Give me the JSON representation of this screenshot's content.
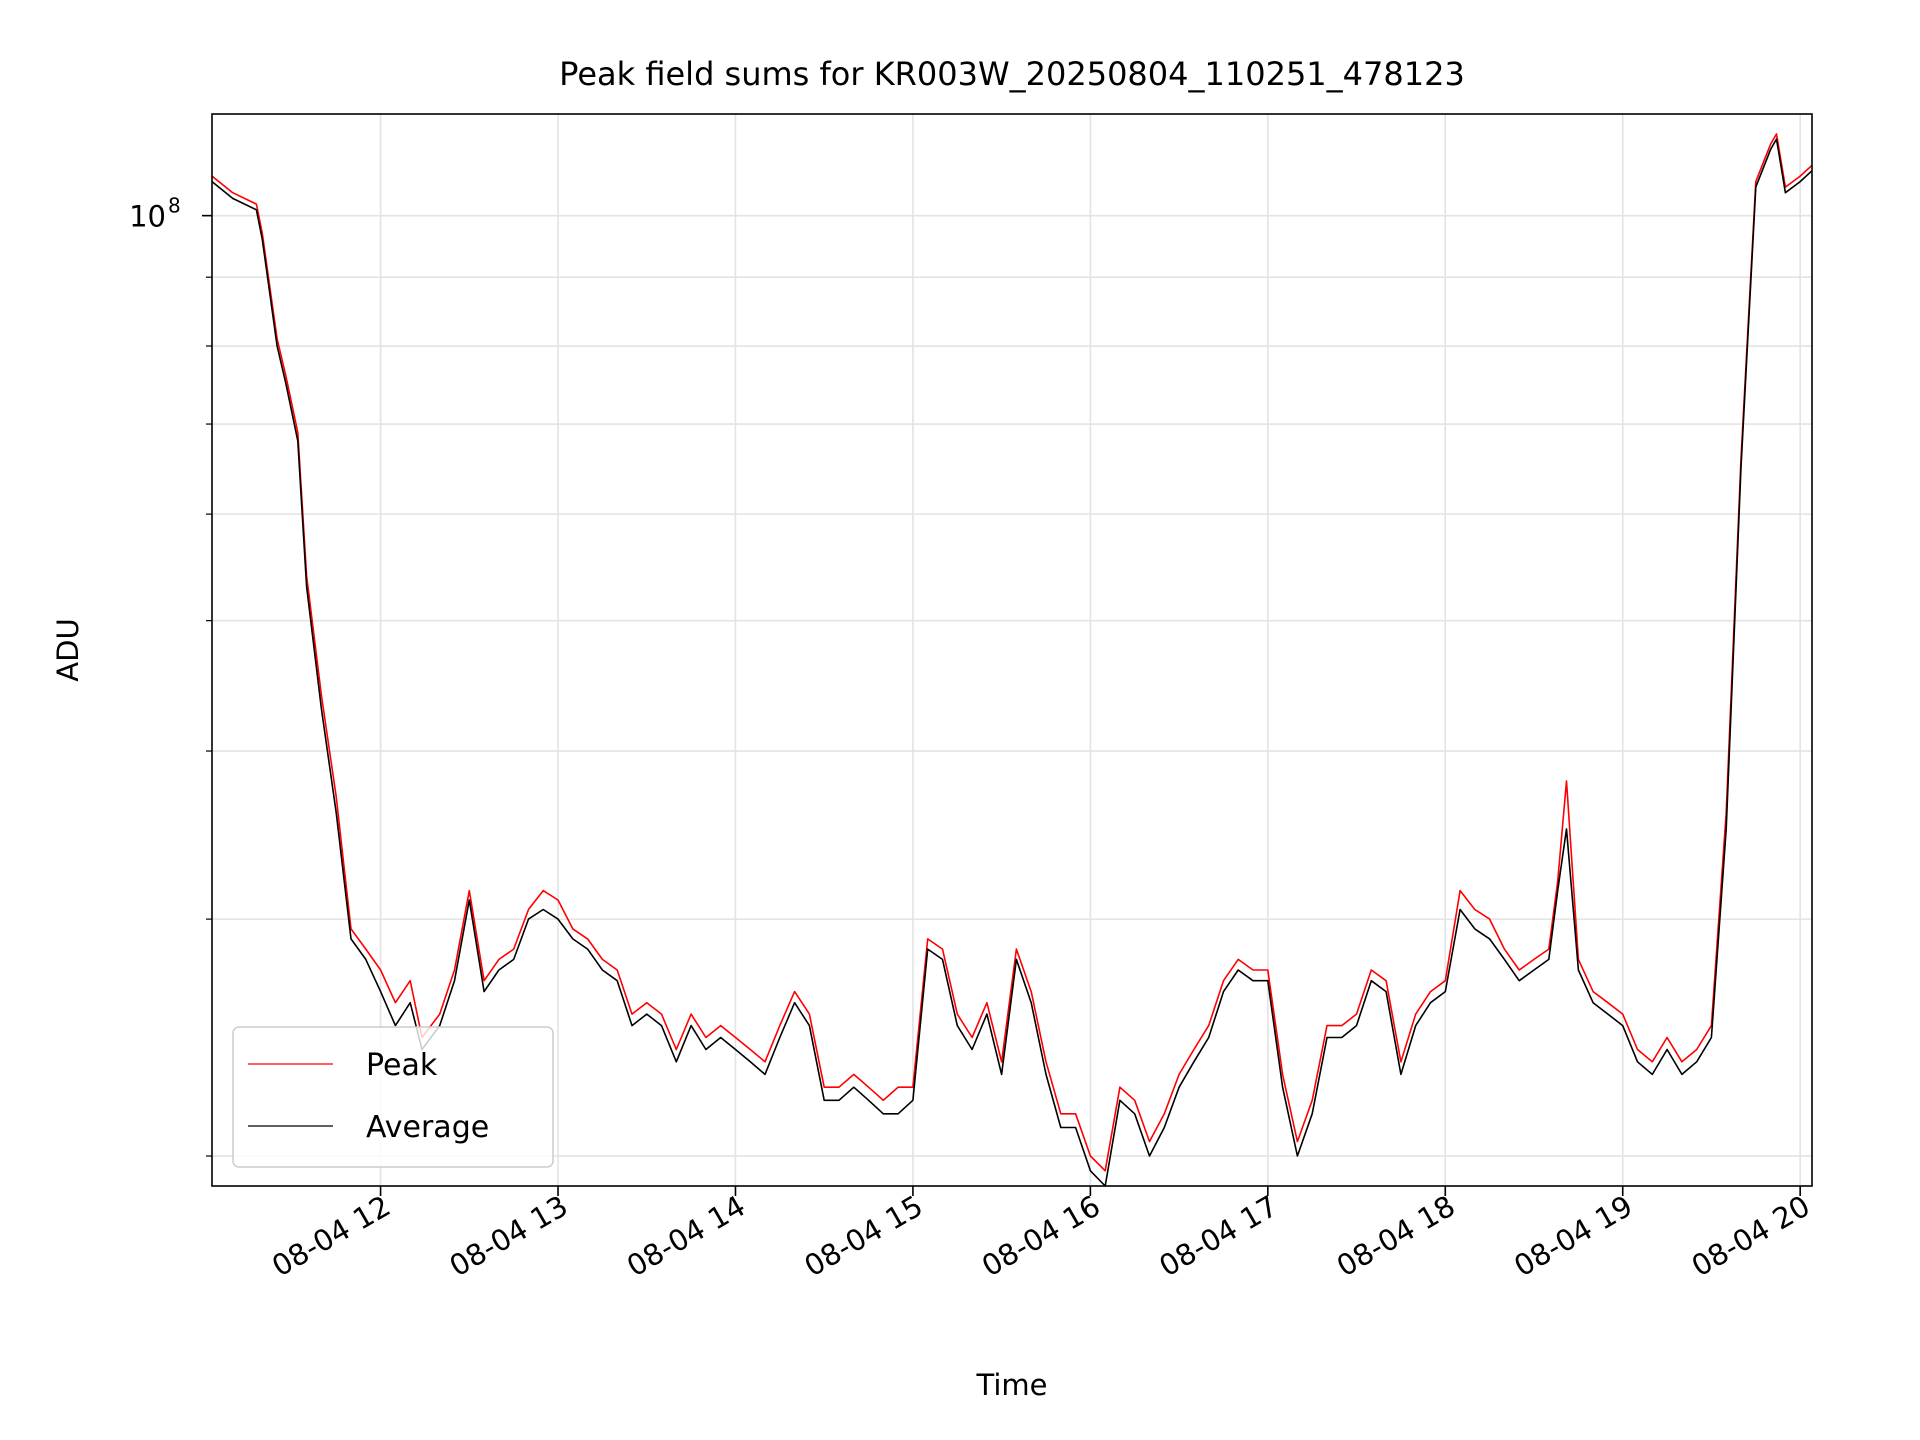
{
  "chart_data": {
    "type": "line",
    "title": "Peak field sums for KR003W_20250804_110251_478123",
    "xlabel": "Time",
    "ylabel": "ADU",
    "y_scale": "log",
    "ylim": [
      19000000,
      119000000
    ],
    "xlim": [
      "2025-08-04 11:03",
      "2025-08-04 20:04"
    ],
    "x_ticks": [
      {
        "value": "2025-08-04 12:00",
        "label": "08-04 12"
      },
      {
        "value": "2025-08-04 13:00",
        "label": "08-04 13"
      },
      {
        "value": "2025-08-04 14:00",
        "label": "08-04 14"
      },
      {
        "value": "2025-08-04 15:00",
        "label": "08-04 15"
      },
      {
        "value": "2025-08-04 16:00",
        "label": "08-04 16"
      },
      {
        "value": "2025-08-04 17:00",
        "label": "08-04 17"
      },
      {
        "value": "2025-08-04 18:00",
        "label": "08-04 18"
      },
      {
        "value": "2025-08-04 19:00",
        "label": "08-04 19"
      },
      {
        "value": "2025-08-04 20:00",
        "label": "08-04 20"
      }
    ],
    "y_major_ticks": [
      {
        "value": 100000000,
        "label_base": "10",
        "label_exp": "8"
      }
    ],
    "y_minor_gridlines": [
      20000000,
      30000000,
      40000000,
      50000000,
      60000000,
      70000000,
      80000000,
      90000000
    ],
    "grid": true,
    "legend_position": "lower-left",
    "colors": {
      "Peak": "#ff0000",
      "Average": "#000000"
    },
    "series": [
      {
        "name": "Average",
        "x": [
          "2025-08-04 11:03",
          "2025-08-04 11:10",
          "2025-08-04 11:18",
          "2025-08-04 11:20",
          "2025-08-04 11:25",
          "2025-08-04 11:28",
          "2025-08-04 11:32",
          "2025-08-04 11:35",
          "2025-08-04 11:40",
          "2025-08-04 11:45",
          "2025-08-04 11:50",
          "2025-08-04 11:55",
          "2025-08-04 12:00",
          "2025-08-04 12:05",
          "2025-08-04 12:10",
          "2025-08-04 12:14",
          "2025-08-04 12:20",
          "2025-08-04 12:25",
          "2025-08-04 12:30",
          "2025-08-04 12:35",
          "2025-08-04 12:40",
          "2025-08-04 12:45",
          "2025-08-04 12:50",
          "2025-08-04 12:55",
          "2025-08-04 13:00",
          "2025-08-04 13:05",
          "2025-08-04 13:10",
          "2025-08-04 13:15",
          "2025-08-04 13:20",
          "2025-08-04 13:25",
          "2025-08-04 13:30",
          "2025-08-04 13:35",
          "2025-08-04 13:40",
          "2025-08-04 13:45",
          "2025-08-04 13:50",
          "2025-08-04 13:55",
          "2025-08-04 14:00",
          "2025-08-04 14:05",
          "2025-08-04 14:10",
          "2025-08-04 14:15",
          "2025-08-04 14:20",
          "2025-08-04 14:25",
          "2025-08-04 14:30",
          "2025-08-04 14:35",
          "2025-08-04 14:40",
          "2025-08-04 14:45",
          "2025-08-04 14:50",
          "2025-08-04 14:55",
          "2025-08-04 15:00",
          "2025-08-04 15:05",
          "2025-08-04 15:10",
          "2025-08-04 15:15",
          "2025-08-04 15:20",
          "2025-08-04 15:25",
          "2025-08-04 15:30",
          "2025-08-04 15:35",
          "2025-08-04 15:40",
          "2025-08-04 15:45",
          "2025-08-04 15:50",
          "2025-08-04 15:55",
          "2025-08-04 16:00",
          "2025-08-04 16:05",
          "2025-08-04 16:10",
          "2025-08-04 16:15",
          "2025-08-04 16:20",
          "2025-08-04 16:25",
          "2025-08-04 16:30",
          "2025-08-04 16:35",
          "2025-08-04 16:40",
          "2025-08-04 16:45",
          "2025-08-04 16:50",
          "2025-08-04 16:55",
          "2025-08-04 17:00",
          "2025-08-04 17:05",
          "2025-08-04 17:10",
          "2025-08-04 17:15",
          "2025-08-04 17:20",
          "2025-08-04 17:25",
          "2025-08-04 17:30",
          "2025-08-04 17:35",
          "2025-08-04 17:40",
          "2025-08-04 17:45",
          "2025-08-04 17:50",
          "2025-08-04 17:55",
          "2025-08-04 18:00",
          "2025-08-04 18:05",
          "2025-08-04 18:10",
          "2025-08-04 18:15",
          "2025-08-04 18:20",
          "2025-08-04 18:25",
          "2025-08-04 18:30",
          "2025-08-04 18:35",
          "2025-08-04 18:38",
          "2025-08-04 18:41",
          "2025-08-04 18:45",
          "2025-08-04 18:50",
          "2025-08-04 18:55",
          "2025-08-04 19:00",
          "2025-08-04 19:05",
          "2025-08-04 19:10",
          "2025-08-04 19:15",
          "2025-08-04 19:20",
          "2025-08-04 19:25",
          "2025-08-04 19:30",
          "2025-08-04 19:35",
          "2025-08-04 19:40",
          "2025-08-04 19:45",
          "2025-08-04 19:50",
          "2025-08-04 19:52",
          "2025-08-04 19:55",
          "2025-08-04 20:00",
          "2025-08-04 20:04"
        ],
        "y": [
          106000000,
          103000000,
          101000000,
          96000000,
          80000000,
          75000000,
          68000000,
          53000000,
          43000000,
          36000000,
          29000000,
          28000000,
          26500000,
          25000000,
          26000000,
          24000000,
          25000000,
          27000000,
          31000000,
          26500000,
          27500000,
          28000000,
          30000000,
          30500000,
          30000000,
          29000000,
          28500000,
          27500000,
          27000000,
          25000000,
          25500000,
          25000000,
          23500000,
          25000000,
          24000000,
          24500000,
          24000000,
          23500000,
          23000000,
          24500000,
          26000000,
          25000000,
          22000000,
          22000000,
          22500000,
          22000000,
          21500000,
          21500000,
          22000000,
          28500000,
          28000000,
          25000000,
          24000000,
          25500000,
          23000000,
          28000000,
          26000000,
          23000000,
          21000000,
          21000000,
          19500000,
          19000000,
          22000000,
          21500000,
          20000000,
          21000000,
          22500000,
          23500000,
          24500000,
          26500000,
          27500000,
          27000000,
          27000000,
          22500000,
          20000000,
          21500000,
          24500000,
          24500000,
          25000000,
          27000000,
          26500000,
          23000000,
          25000000,
          26000000,
          26500000,
          30500000,
          29500000,
          29000000,
          28000000,
          27000000,
          27500000,
          28000000,
          31500000,
          35000000,
          27500000,
          26000000,
          25500000,
          25000000,
          23500000,
          23000000,
          24000000,
          23000000,
          23500000,
          24500000,
          35000000,
          65000000,
          105000000,
          112000000,
          114000000,
          104000000,
          106000000,
          108000000
        ]
      },
      {
        "name": "Peak",
        "x": [
          "2025-08-04 11:03",
          "2025-08-04 11:10",
          "2025-08-04 11:18",
          "2025-08-04 11:20",
          "2025-08-04 11:25",
          "2025-08-04 11:28",
          "2025-08-04 11:32",
          "2025-08-04 11:35",
          "2025-08-04 11:40",
          "2025-08-04 11:45",
          "2025-08-04 11:50",
          "2025-08-04 11:55",
          "2025-08-04 12:00",
          "2025-08-04 12:05",
          "2025-08-04 12:10",
          "2025-08-04 12:14",
          "2025-08-04 12:20",
          "2025-08-04 12:25",
          "2025-08-04 12:30",
          "2025-08-04 12:35",
          "2025-08-04 12:40",
          "2025-08-04 12:45",
          "2025-08-04 12:50",
          "2025-08-04 12:55",
          "2025-08-04 13:00",
          "2025-08-04 13:05",
          "2025-08-04 13:10",
          "2025-08-04 13:15",
          "2025-08-04 13:20",
          "2025-08-04 13:25",
          "2025-08-04 13:30",
          "2025-08-04 13:35",
          "2025-08-04 13:40",
          "2025-08-04 13:45",
          "2025-08-04 13:50",
          "2025-08-04 13:55",
          "2025-08-04 14:00",
          "2025-08-04 14:05",
          "2025-08-04 14:10",
          "2025-08-04 14:15",
          "2025-08-04 14:20",
          "2025-08-04 14:25",
          "2025-08-04 14:30",
          "2025-08-04 14:35",
          "2025-08-04 14:40",
          "2025-08-04 14:45",
          "2025-08-04 14:50",
          "2025-08-04 14:55",
          "2025-08-04 15:00",
          "2025-08-04 15:05",
          "2025-08-04 15:10",
          "2025-08-04 15:15",
          "2025-08-04 15:20",
          "2025-08-04 15:25",
          "2025-08-04 15:30",
          "2025-08-04 15:35",
          "2025-08-04 15:40",
          "2025-08-04 15:45",
          "2025-08-04 15:50",
          "2025-08-04 15:55",
          "2025-08-04 16:00",
          "2025-08-04 16:05",
          "2025-08-04 16:10",
          "2025-08-04 16:15",
          "2025-08-04 16:20",
          "2025-08-04 16:25",
          "2025-08-04 16:30",
          "2025-08-04 16:35",
          "2025-08-04 16:40",
          "2025-08-04 16:45",
          "2025-08-04 16:50",
          "2025-08-04 16:55",
          "2025-08-04 17:00",
          "2025-08-04 17:05",
          "2025-08-04 17:10",
          "2025-08-04 17:15",
          "2025-08-04 17:20",
          "2025-08-04 17:25",
          "2025-08-04 17:30",
          "2025-08-04 17:35",
          "2025-08-04 17:40",
          "2025-08-04 17:45",
          "2025-08-04 17:50",
          "2025-08-04 17:55",
          "2025-08-04 18:00",
          "2025-08-04 18:05",
          "2025-08-04 18:10",
          "2025-08-04 18:15",
          "2025-08-04 18:20",
          "2025-08-04 18:25",
          "2025-08-04 18:30",
          "2025-08-04 18:35",
          "2025-08-04 18:38",
          "2025-08-04 18:41",
          "2025-08-04 18:45",
          "2025-08-04 18:50",
          "2025-08-04 18:55",
          "2025-08-04 19:00",
          "2025-08-04 19:05",
          "2025-08-04 19:10",
          "2025-08-04 19:15",
          "2025-08-04 19:20",
          "2025-08-04 19:25",
          "2025-08-04 19:30",
          "2025-08-04 19:35",
          "2025-08-04 19:40",
          "2025-08-04 19:45",
          "2025-08-04 19:50",
          "2025-08-04 19:52",
          "2025-08-04 19:55",
          "2025-08-04 20:00",
          "2025-08-04 20:04"
        ],
        "y": [
          107000000,
          104000000,
          102000000,
          97000000,
          81000000,
          76000000,
          69000000,
          54000000,
          44000000,
          37000000,
          29500000,
          28500000,
          27500000,
          26000000,
          27000000,
          24500000,
          25500000,
          27500000,
          31500000,
          27000000,
          28000000,
          28500000,
          30500000,
          31500000,
          31000000,
          29500000,
          29000000,
          28000000,
          27500000,
          25500000,
          26000000,
          25500000,
          24000000,
          25500000,
          24500000,
          25000000,
          24500000,
          24000000,
          23500000,
          25000000,
          26500000,
          25500000,
          22500000,
          22500000,
          23000000,
          22500000,
          22000000,
          22500000,
          22500000,
          29000000,
          28500000,
          25500000,
          24500000,
          26000000,
          23500000,
          28500000,
          26500000,
          23500000,
          21500000,
          21500000,
          20000000,
          19500000,
          22500000,
          22000000,
          20500000,
          21500000,
          23000000,
          24000000,
          25000000,
          27000000,
          28000000,
          27500000,
          27500000,
          23000000,
          20500000,
          22000000,
          25000000,
          25000000,
          25500000,
          27500000,
          27000000,
          23500000,
          25500000,
          26500000,
          27000000,
          31500000,
          30500000,
          30000000,
          28500000,
          27500000,
          28000000,
          28500000,
          32000000,
          38000000,
          28000000,
          26500000,
          26000000,
          25500000,
          24000000,
          23500000,
          24500000,
          23500000,
          24000000,
          25000000,
          36000000,
          66000000,
          106000000,
          113000000,
          115000000,
          105000000,
          107000000,
          109000000
        ]
      }
    ]
  }
}
